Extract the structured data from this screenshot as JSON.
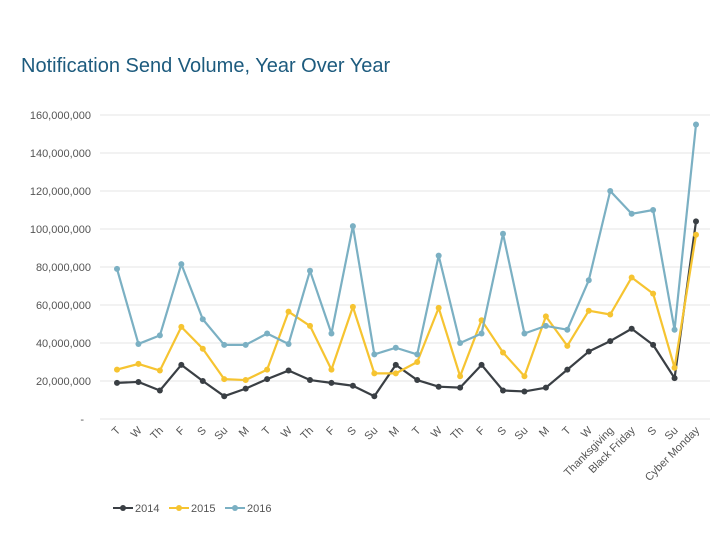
{
  "chart_data": {
    "type": "line",
    "title": "Notification Send Volume, Year Over Year",
    "xlabel": "",
    "ylabel": "",
    "ylim": [
      0,
      160000000
    ],
    "yticks": [
      "-",
      "20,000,000",
      "40,000,000",
      "60,000,000",
      "80,000,000",
      "100,000,000",
      "120,000,000",
      "140,000,000",
      "160,000,000"
    ],
    "grid": true,
    "legend": "bottom-left",
    "categories": [
      "T",
      "W",
      "Th",
      "F",
      "S",
      "Su",
      "M",
      "T",
      "W",
      "Th",
      "F",
      "S",
      "Su",
      "M",
      "T",
      "W",
      "Th",
      "F",
      "S",
      "Su",
      "M",
      "T",
      "W",
      "Thanksgiving",
      "Black Friday",
      "S",
      "Su",
      "Cyber Monday"
    ],
    "series": [
      {
        "name": "2014",
        "color": "#3a3f44",
        "values": [
          19000000,
          19500000,
          15000000,
          28500000,
          20000000,
          12000000,
          16000000,
          21000000,
          25500000,
          20500000,
          19000000,
          17500000,
          12000000,
          28500000,
          20500000,
          17000000,
          16500000,
          28500000,
          15000000,
          14500000,
          16500000,
          26000000,
          35500000,
          41000000,
          47500000,
          39000000,
          21500000,
          104000000
        ]
      },
      {
        "name": "2015",
        "color": "#f6c431",
        "values": [
          26000000,
          29000000,
          25500000,
          48500000,
          37000000,
          21000000,
          20500000,
          26000000,
          56500000,
          49000000,
          26000000,
          59000000,
          24000000,
          24000000,
          30000000,
          58500000,
          22500000,
          52000000,
          35000000,
          22500000,
          54000000,
          38500000,
          57000000,
          55000000,
          74500000,
          66000000,
          27000000,
          97000000
        ]
      },
      {
        "name": "2016",
        "color": "#7bb0c3",
        "values": [
          79000000,
          39500000,
          44000000,
          81500000,
          52500000,
          39000000,
          39000000,
          45000000,
          39500000,
          78000000,
          45000000,
          101500000,
          34000000,
          37500000,
          34000000,
          86000000,
          40000000,
          45000000,
          97500000,
          45000000,
          49000000,
          47000000,
          73000000,
          120000000,
          108000000,
          110000000,
          47000000,
          155000000
        ]
      }
    ]
  }
}
